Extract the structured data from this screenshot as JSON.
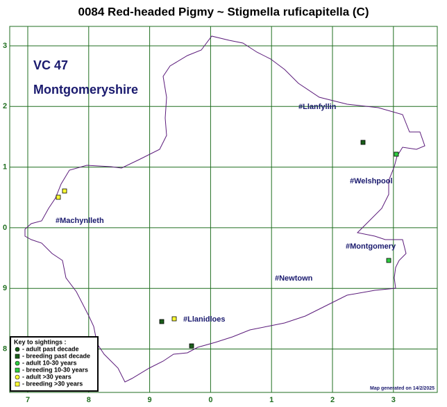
{
  "title": "0084 Red-headed Pigmy ~ Stigmella ruficapitella (C)",
  "area": {
    "code": "VC 47",
    "name": "Montgomeryshire"
  },
  "grid": {
    "columns": [
      "7",
      "8",
      "9",
      "0",
      "1",
      "2",
      "3"
    ],
    "rows": [
      "3",
      "2",
      "1",
      "0",
      "9",
      "8"
    ]
  },
  "places": [
    "#Llanfyllin",
    "#Welshpool",
    "#Machynlleth",
    "#Montgomery",
    "#Newtown",
    "#Llanidloes"
  ],
  "key": {
    "title": "Key to sightings :",
    "items": [
      "- adult past decade",
      "- breeding past decade",
      "- adult 10-30 years",
      "- breeding 10-30 years",
      "- adult >30 years",
      "- breeding >30 years"
    ]
  },
  "footer": "Map generated on 14/2/2025"
}
